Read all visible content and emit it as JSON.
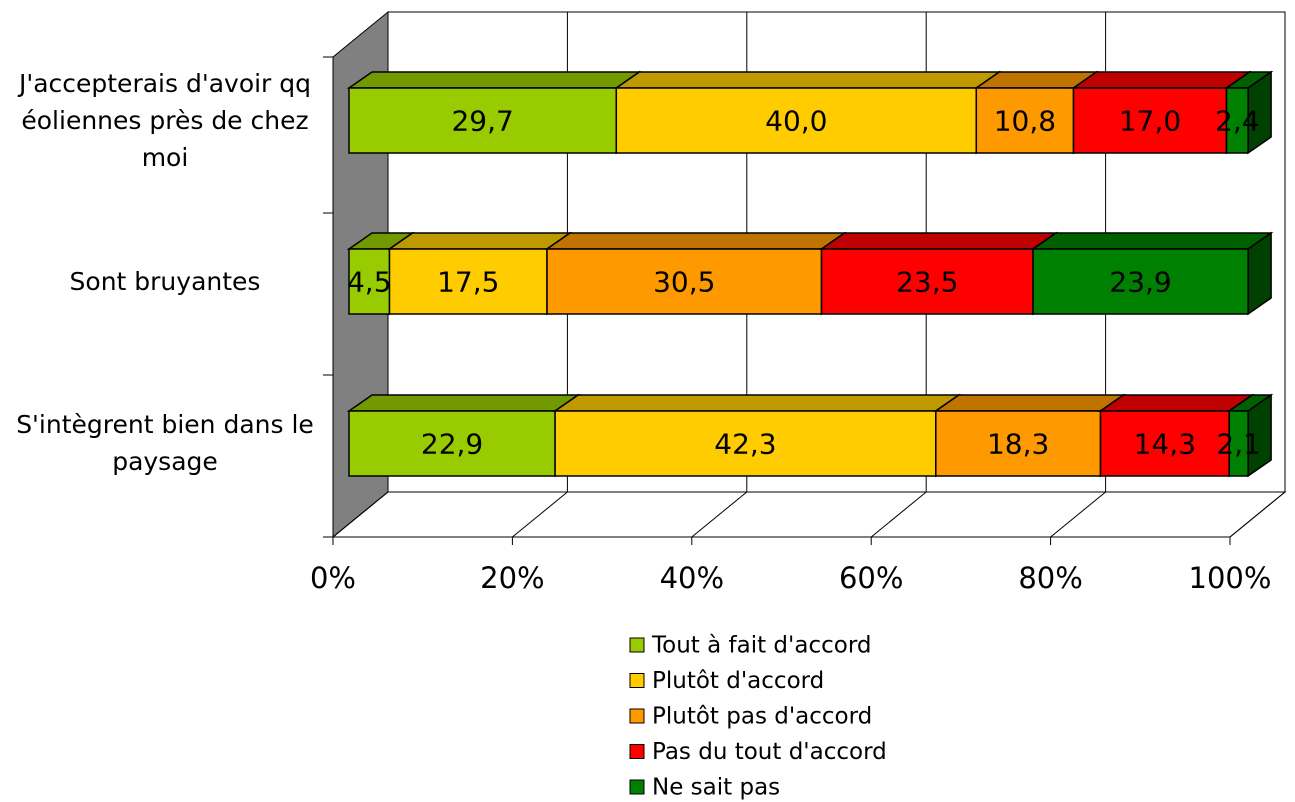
{
  "chart_data": {
    "type": "bar3d_stacked_horizontal",
    "categories": [
      "J'accepterais d'avoir qq éoliennes près de chez moi",
      "Sont bruyantes",
      "S'intègrent bien dans le paysage"
    ],
    "series": [
      {
        "name": "Tout à fait d'accord",
        "color": "#99cc00",
        "values": [
          29.7,
          4.5,
          22.9
        ],
        "value_labels": [
          "29,7",
          "4,5",
          "22,9"
        ]
      },
      {
        "name": "Plutôt d'accord",
        "color": "#ffcc00",
        "values": [
          40.0,
          17.5,
          42.3
        ],
        "value_labels": [
          "40,0",
          "17,5",
          "42,3"
        ]
      },
      {
        "name": "Plutôt pas d'accord",
        "color": "#ff9900",
        "values": [
          10.8,
          30.5,
          18.3
        ],
        "value_labels": [
          "10,8",
          "30,5",
          "18,3"
        ]
      },
      {
        "name": "Pas du tout d'accord",
        "color": "#ff0000",
        "values": [
          17.0,
          23.5,
          14.3
        ],
        "value_labels": [
          "17,0",
          "23,5",
          "14,3"
        ]
      },
      {
        "name": "Ne sait pas",
        "color": "#008000",
        "values": [
          2.4,
          23.9,
          2.1
        ],
        "value_labels": [
          "2,4",
          "23,9",
          "2,1"
        ]
      }
    ],
    "xlim": [
      0,
      100
    ],
    "xticks": [
      {
        "value": 0,
        "label": "0%"
      },
      {
        "value": 20,
        "label": "20%"
      },
      {
        "value": 40,
        "label": "40%"
      },
      {
        "value": 60,
        "label": "60%"
      },
      {
        "value": 80,
        "label": "80%"
      },
      {
        "value": 100,
        "label": "100%"
      }
    ],
    "grid": true,
    "legend": "bottom"
  }
}
